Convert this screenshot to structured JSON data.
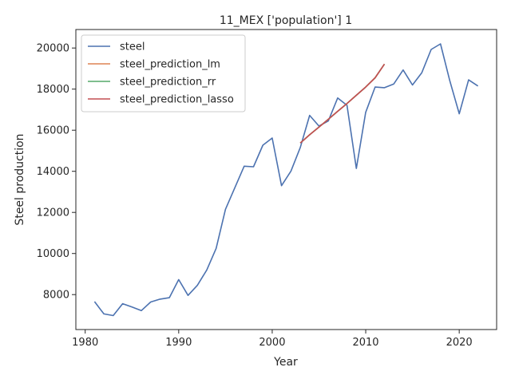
{
  "chart_data": {
    "type": "line",
    "title": "11_MEX ['population'] 1",
    "xlabel": "Year",
    "ylabel": "Steel production",
    "xlim": [
      1979,
      2024
    ],
    "ylim": [
      6300,
      20900
    ],
    "xticks": [
      1980,
      1990,
      2000,
      2010,
      2020
    ],
    "yticks": [
      8000,
      10000,
      12000,
      14000,
      16000,
      18000,
      20000
    ],
    "grid": false,
    "legend_position": "top-left",
    "series": [
      {
        "name": "steel",
        "color": "#4c72b0",
        "x": [
          1981,
          1982,
          1983,
          1984,
          1985,
          1986,
          1987,
          1988,
          1989,
          1990,
          1991,
          1992,
          1993,
          1994,
          1995,
          1996,
          1997,
          1998,
          1999,
          2000,
          2001,
          2002,
          2003,
          2004,
          2005,
          2006,
          2007,
          2008,
          2009,
          2010,
          2011,
          2012,
          2013,
          2014,
          2015,
          2016,
          2017,
          2018,
          2019,
          2020,
          2021,
          2022
        ],
        "y": [
          7660,
          7060,
          6980,
          7560,
          7400,
          7220,
          7640,
          7780,
          7850,
          8730,
          7960,
          8450,
          9200,
          10250,
          12150,
          13200,
          14250,
          14220,
          15270,
          15620,
          13300,
          14010,
          15160,
          16720,
          16200,
          16450,
          17570,
          17210,
          14140,
          16870,
          18100,
          18070,
          18250,
          18930,
          18200,
          18800,
          19930,
          20200,
          18400,
          16800,
          18450,
          18150
        ]
      },
      {
        "name": "steel_prediction_lm",
        "color": "#dd8452",
        "x": [
          2003,
          2004,
          2005,
          2006,
          2007,
          2008,
          2009,
          2010,
          2011,
          2012
        ],
        "y": [
          15380,
          15780,
          16150,
          16530,
          16920,
          17300,
          17700,
          18100,
          18550,
          19220
        ]
      },
      {
        "name": "steel_prediction_rr",
        "color": "#55a868",
        "x": [
          2003,
          2004,
          2005,
          2006,
          2007,
          2008,
          2009,
          2010,
          2011,
          2012
        ],
        "y": [
          15380,
          15780,
          16150,
          16530,
          16920,
          17300,
          17700,
          18100,
          18550,
          19220
        ]
      },
      {
        "name": "steel_prediction_lasso",
        "color": "#c44e52",
        "x": [
          2003,
          2004,
          2005,
          2006,
          2007,
          2008,
          2009,
          2010,
          2011,
          2012
        ],
        "y": [
          15380,
          15780,
          16150,
          16530,
          16920,
          17300,
          17700,
          18100,
          18550,
          19220
        ]
      }
    ]
  }
}
